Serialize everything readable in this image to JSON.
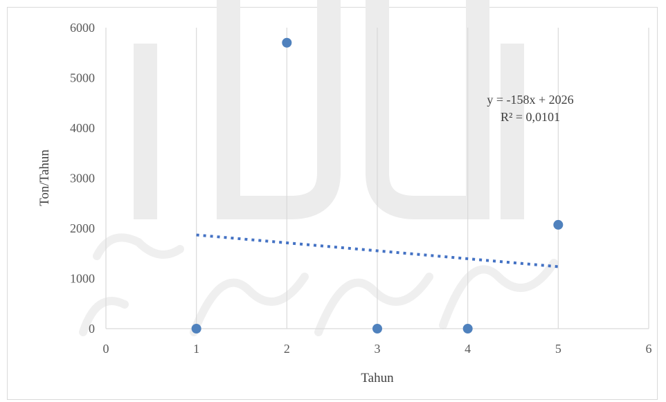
{
  "chart_data": {
    "type": "scatter",
    "title": "",
    "xlabel": "Tahun",
    "ylabel": "Ton/Tahun",
    "xlim": [
      0,
      6
    ],
    "ylim": [
      0,
      6000
    ],
    "x_ticks": [
      "0",
      "1",
      "2",
      "3",
      "4",
      "5",
      "6"
    ],
    "y_ticks": [
      "0",
      "1000",
      "2000",
      "3000",
      "4000",
      "5000",
      "6000"
    ],
    "grid": "vertical",
    "points": [
      {
        "x": 1,
        "y": 0
      },
      {
        "x": 2,
        "y": 5700
      },
      {
        "x": 3,
        "y": 0
      },
      {
        "x": 4,
        "y": 0
      },
      {
        "x": 5,
        "y": 2070
      }
    ],
    "trendline": {
      "type": "linear",
      "style": "dotted",
      "slope": -158,
      "intercept": 2026,
      "x_range": [
        1,
        5
      ],
      "equation": "y = -158x + 2026",
      "r_squared": "R² = 0,0101"
    },
    "colors": {
      "marker": "#4f81bd",
      "trendline": "#4472c4",
      "grid": "#d9d9d9",
      "watermark": "#ececec"
    }
  }
}
